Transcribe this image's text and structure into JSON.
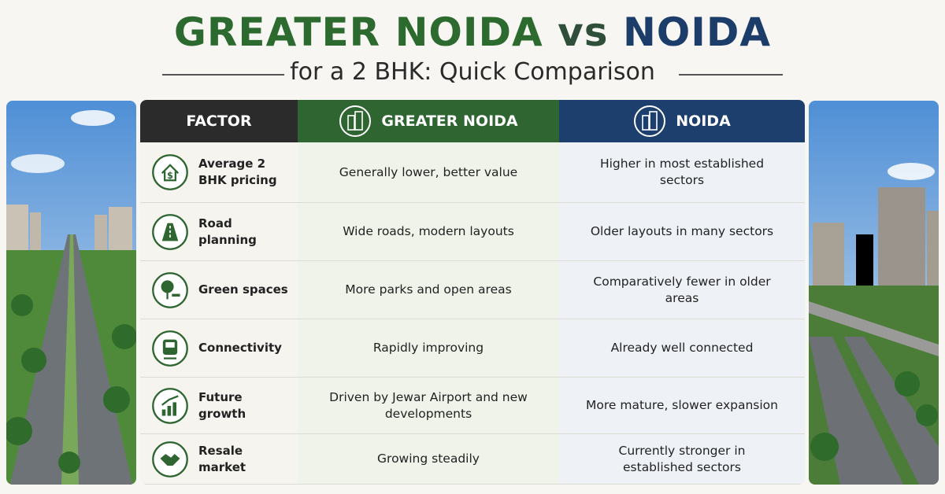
{
  "header": {
    "title_left": "GREATER NOIDA",
    "title_vs": "vs",
    "title_right": "NOIDA",
    "subtitle": "for a 2 BHK: Quick Comparison"
  },
  "table": {
    "columns": [
      "FACTOR",
      "GREATER NOIDA",
      "NOIDA"
    ],
    "rows": [
      [
        "Average 2 BHK pricing",
        "Generally lower, better value",
        "Higher in most established sectors"
      ],
      [
        "Road planning",
        "Wide roads, modern layouts",
        "Older layouts in many sectors"
      ],
      [
        "Green spaces",
        "More parks and open areas",
        "Comparatively fewer in older areas"
      ],
      [
        "Connectivity",
        "Rapidly improving",
        "Already well connected"
      ],
      [
        "Future growth",
        "Driven by Jewar Airport and new developments",
        "More mature, slower expansion"
      ],
      [
        "Resale market",
        "Growing steadily",
        "Currently stronger in established sectors"
      ]
    ]
  }
}
